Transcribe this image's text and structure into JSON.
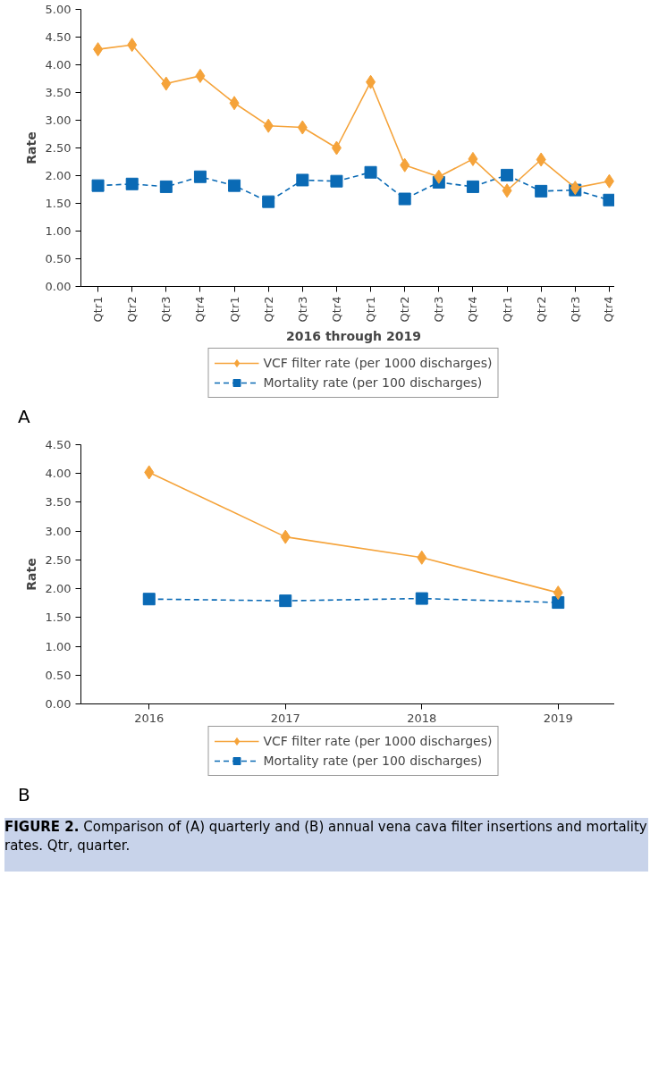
{
  "chart_data": [
    {
      "type": "line",
      "ylabel": "Rate",
      "xlabel": "2016 through 2019",
      "categories": [
        "Qtr1",
        "Qtr2",
        "Qtr3",
        "Qtr4",
        "Qtr1",
        "Qtr2",
        "Qtr3",
        "Qtr4",
        "Qtr1",
        "Qtr2",
        "Qtr3",
        "Qtr4",
        "Qtr1",
        "Qtr2",
        "Qtr3",
        "Qtr4"
      ],
      "series": [
        {
          "name": "VCF filter rate (per 1000 discharges)",
          "color": "#f5a33a",
          "marker": "diamond",
          "line_style": "solid",
          "values": [
            4.28,
            4.36,
            3.66,
            3.8,
            3.31,
            2.9,
            2.87,
            2.5,
            3.69,
            2.19,
            1.98,
            2.3,
            1.73,
            2.29,
            1.78,
            1.9
          ]
        },
        {
          "name": "Mortality rate (per 100 discharges)",
          "color": "#0a6ab5",
          "marker": "square",
          "line_style": "dashed",
          "values": [
            1.82,
            1.85,
            1.8,
            1.98,
            1.82,
            1.53,
            1.92,
            1.9,
            2.06,
            1.58,
            1.88,
            1.8,
            2.01,
            1.72,
            1.74,
            1.56
          ]
        }
      ],
      "ylim": [
        0,
        5
      ],
      "yticks": [
        {
          "value": 0,
          "label": "0.00"
        },
        {
          "value": 0.5,
          "label": "0.50"
        },
        {
          "value": 1,
          "label": "1.00"
        },
        {
          "value": 1.5,
          "label": "1.50"
        },
        {
          "value": 2,
          "label": "2.00"
        },
        {
          "value": 2.5,
          "label": "2.50"
        },
        {
          "value": 3,
          "label": "3.00"
        },
        {
          "value": 3.5,
          "label": "3.50"
        },
        {
          "value": 4,
          "label": "4.00"
        },
        {
          "value": 4.5,
          "label": "4.50"
        },
        {
          "value": 5,
          "label": "5.00"
        }
      ],
      "legend": "bottom",
      "annotations": [
        "A"
      ]
    },
    {
      "type": "line",
      "ylabel": "Rate",
      "categories": [
        "2016",
        "2017",
        "2018",
        "2019"
      ],
      "series": [
        {
          "name": "VCF filter rate (per 1000 discharges)",
          "color": "#f5a33a",
          "marker": "diamond",
          "line_style": "solid",
          "values": [
            4.02,
            2.9,
            2.54,
            1.93
          ]
        },
        {
          "name": "Mortality rate (per 100 discharges)",
          "color": "#0a6ab5",
          "marker": "square",
          "line_style": "dashed",
          "values": [
            1.82,
            1.79,
            1.83,
            1.76
          ]
        }
      ],
      "ylim": [
        0,
        4.5
      ],
      "yticks": [
        {
          "value": 0,
          "label": "0.00"
        },
        {
          "value": 0.5,
          "label": "0.50"
        },
        {
          "value": 1,
          "label": "1.00"
        },
        {
          "value": 1.5,
          "label": "1.50"
        },
        {
          "value": 2,
          "label": "2.00"
        },
        {
          "value": 2.5,
          "label": "2.50"
        },
        {
          "value": 3,
          "label": "3.00"
        },
        {
          "value": 3.5,
          "label": "3.50"
        },
        {
          "value": 4,
          "label": "4.00"
        },
        {
          "value": 4.5,
          "label": "4.50"
        }
      ],
      "legend": "bottom",
      "annotations": [
        "B",
        "FIGURE 2. Comparison of (A) quarterly and (B) annual vena cava filter insertions and mortality rates. Qtr, quarter."
      ]
    }
  ]
}
